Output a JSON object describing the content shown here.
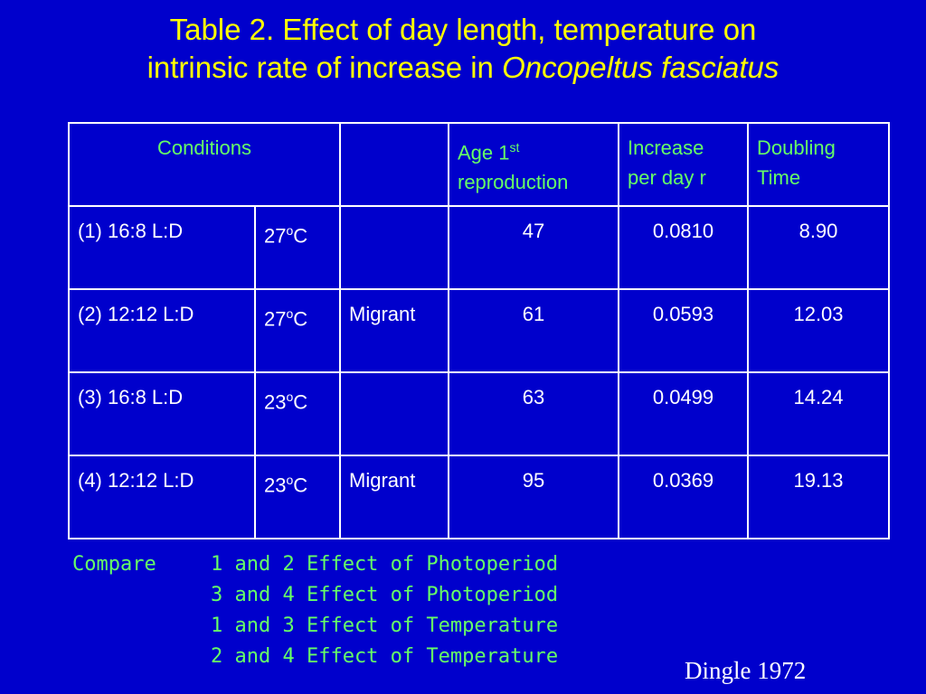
{
  "title": {
    "line1": "Table 2. Effect of day length, temperature on",
    "line2_plain": "intrinsic rate of increase in ",
    "line2_italic": "Oncopeltus fasciatus"
  },
  "table": {
    "headers": {
      "conditions": "Conditions",
      "col3": "",
      "age_line1_base": "Age 1",
      "age_line1_sup": "st",
      "age_line2": "reproduction",
      "increase_line1": "Increase",
      "increase_line2": "per day r",
      "doubling_line1": "Doubling",
      "doubling_line2": "Time"
    },
    "rows": [
      {
        "photoperiod": "(1) 16:8 L:D",
        "temp_value": "27",
        "temp_sup": "o",
        "temp_unit": "C",
        "status": "",
        "age": "47",
        "increase": "0.0810",
        "doubling": "8.90"
      },
      {
        "photoperiod": "(2) 12:12 L:D",
        "temp_value": "27",
        "temp_sup": "o",
        "temp_unit": "C",
        "status": "Migrant",
        "age": "61",
        "increase": "0.0593",
        "doubling": "12.03"
      },
      {
        "photoperiod": "(3) 16:8 L:D",
        "temp_value": "23",
        "temp_sup": "o",
        "temp_unit": "C",
        "status": "",
        "age": "63",
        "increase": "0.0499",
        "doubling": "14.24"
      },
      {
        "photoperiod": "(4) 12:12 L:D",
        "temp_value": "23",
        "temp_sup": "o",
        "temp_unit": "C",
        "status": "Migrant",
        "age": "95",
        "increase": "0.0369",
        "doubling": "19.13"
      }
    ]
  },
  "compare": {
    "label": "Compare",
    "lines": [
      "1 and 2 Effect of Photoperiod",
      "3 and 4 Effect of Photoperiod",
      "1 and 3 Effect of Temperature",
      "2 and 4 Effect of Temperature"
    ]
  },
  "citation": "Dingle 1972",
  "colors": {
    "background": "#0000cc",
    "title": "#ffff00",
    "header_text": "#66ff66",
    "cell_text": "#ffffff",
    "compare_text": "#66ff66"
  }
}
